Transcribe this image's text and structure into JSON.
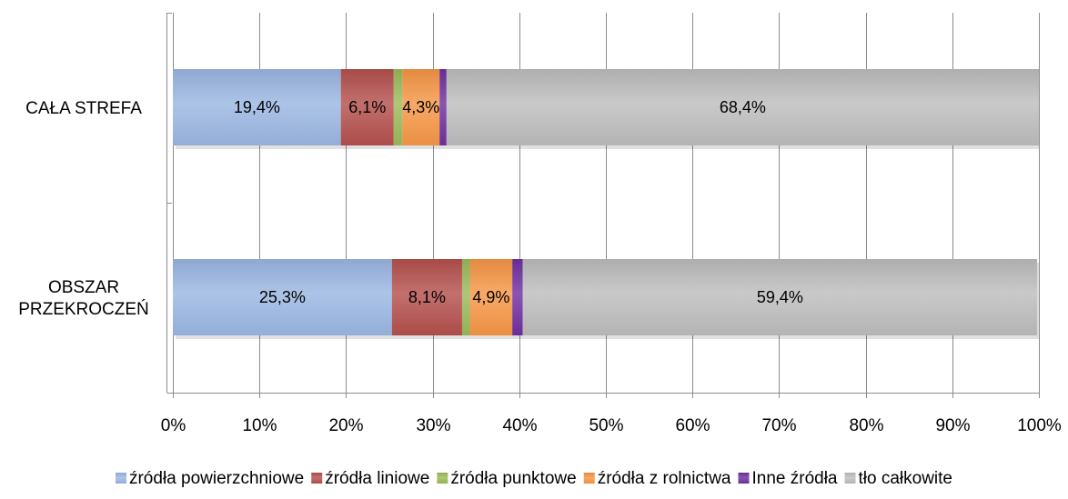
{
  "chart_data": {
    "type": "bar",
    "orientation": "horizontal",
    "stacked": "percent",
    "title": "",
    "categories": [
      [
        "CAŁA STREFA"
      ],
      [
        "OBSZAR",
        "PRZEKROCZEŃ"
      ]
    ],
    "series": [
      {
        "name": "źródła powierzchniowe",
        "values": [
          19.4,
          25.3
        ],
        "color": "#9bb7e3",
        "labels": [
          "19,4%",
          "25,3%"
        ]
      },
      {
        "name": "źródła liniowe",
        "values": [
          6.1,
          8.1
        ],
        "color": "#b5504d",
        "labels": [
          "6,1%",
          "8,1%"
        ]
      },
      {
        "name": "źródła punktowe",
        "values": [
          1.0,
          0.9
        ],
        "color": "#9bbb59",
        "labels": [
          "",
          ""
        ]
      },
      {
        "name": "źródła z rolnictwa",
        "values": [
          4.3,
          4.9
        ],
        "color": "#f79646",
        "labels": [
          "4,3%",
          "4,9%"
        ]
      },
      {
        "name": "Inne źródła",
        "values": [
          0.8,
          1.2
        ],
        "color": "#7030a0",
        "labels": [
          "",
          ""
        ]
      },
      {
        "name": "tło całkowite",
        "values": [
          68.4,
          59.4
        ],
        "color": "#bdbdbd",
        "labels": [
          "68,4%",
          "59,4%"
        ]
      }
    ],
    "x_ticks": [
      "0%",
      "10%",
      "20%",
      "30%",
      "40%",
      "50%",
      "60%",
      "70%",
      "80%",
      "90%",
      "100%"
    ],
    "xlim": [
      0,
      100
    ],
    "grid": true,
    "legend_position": "bottom"
  }
}
